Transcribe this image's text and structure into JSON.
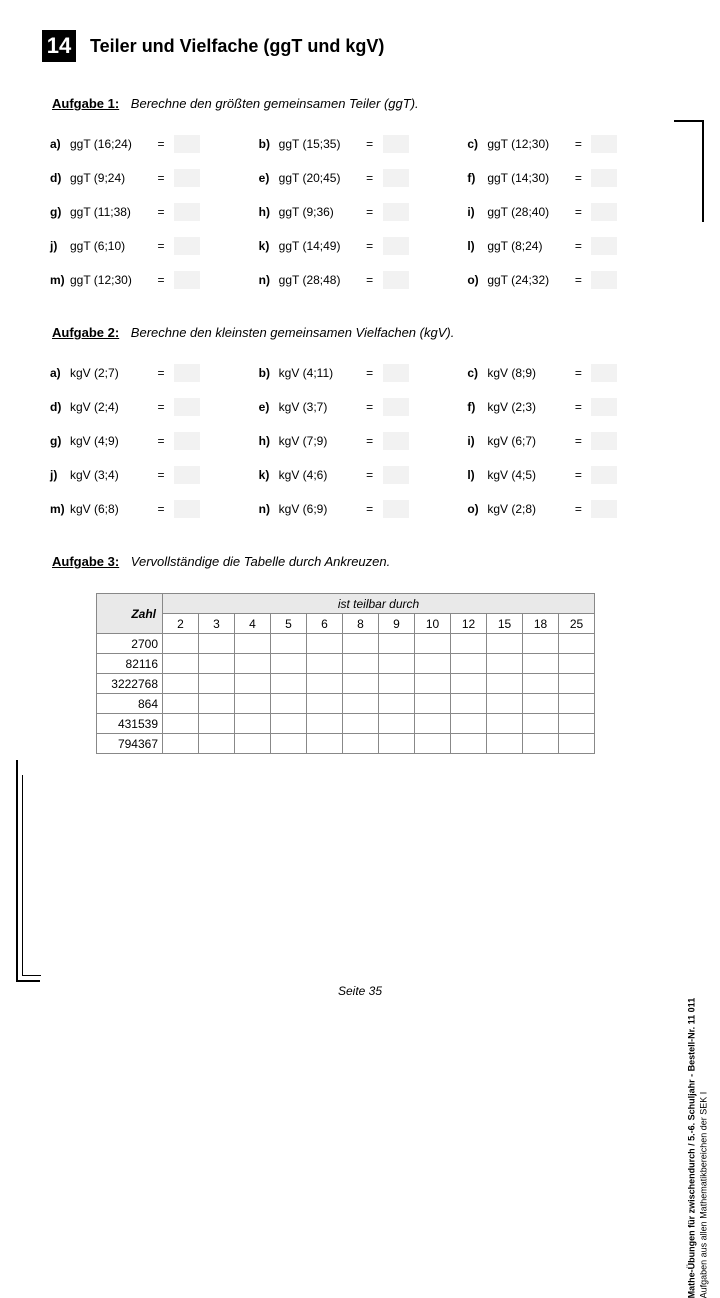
{
  "chapter": {
    "number": "14",
    "title": "Teiler und Vielfache  (ggT und kgV)"
  },
  "aufgabe1": {
    "label": "Aufgabe 1:",
    "prompt": "Berechne den größten gemeinsamen Teiler (ggT).",
    "items": [
      {
        "lt": "a)",
        "expr": "ggT (16;24)"
      },
      {
        "lt": "b)",
        "expr": "ggT (15;35)"
      },
      {
        "lt": "c)",
        "expr": "ggT (12;30)"
      },
      {
        "lt": "d)",
        "expr": "ggT (9;24)"
      },
      {
        "lt": "e)",
        "expr": "ggT (20;45)"
      },
      {
        "lt": "f)",
        "expr": "ggT (14;30)"
      },
      {
        "lt": "g)",
        "expr": "ggT (11;38)"
      },
      {
        "lt": "h)",
        "expr": "ggT (9;36)"
      },
      {
        "lt": "i)",
        "expr": "ggT (28;40)"
      },
      {
        "lt": "j)",
        "expr": "ggT (6;10)"
      },
      {
        "lt": "k)",
        "expr": "ggT (14;49)"
      },
      {
        "lt": "l)",
        "expr": "ggT (8;24)"
      },
      {
        "lt": "m)",
        "expr": "ggT (12;30)"
      },
      {
        "lt": "n)",
        "expr": "ggT (28;48)"
      },
      {
        "lt": "o)",
        "expr": "ggT (24;32)"
      }
    ]
  },
  "aufgabe2": {
    "label": "Aufgabe 2:",
    "prompt": "Berechne den kleinsten gemeinsamen Vielfachen (kgV).",
    "items": [
      {
        "lt": "a)",
        "expr": "kgV (2;7)"
      },
      {
        "lt": "b)",
        "expr": "kgV (4;11)"
      },
      {
        "lt": "c)",
        "expr": "kgV (8;9)"
      },
      {
        "lt": "d)",
        "expr": "kgV (2;4)"
      },
      {
        "lt": "e)",
        "expr": "kgV (3;7)"
      },
      {
        "lt": "f)",
        "expr": "kgV (2;3)"
      },
      {
        "lt": "g)",
        "expr": "kgV (4;9)"
      },
      {
        "lt": "h)",
        "expr": "kgV (7;9)"
      },
      {
        "lt": "i)",
        "expr": "kgV (6;7)"
      },
      {
        "lt": "j)",
        "expr": "kgV (3;4)"
      },
      {
        "lt": "k)",
        "expr": "kgV (4;6)"
      },
      {
        "lt": "l)",
        "expr": "kgV (4;5)"
      },
      {
        "lt": "m)",
        "expr": "kgV (6;8)"
      },
      {
        "lt": "n)",
        "expr": "kgV (6;9)"
      },
      {
        "lt": "o)",
        "expr": "kgV (2;8)"
      }
    ]
  },
  "aufgabe3": {
    "label": "Aufgabe 3:",
    "prompt": "Vervollständige die Tabelle durch Ankreuzen.",
    "table": {
      "zahl_header": "Zahl",
      "span_header": "ist teilbar durch",
      "columns": [
        "2",
        "3",
        "4",
        "5",
        "6",
        "8",
        "9",
        "10",
        "12",
        "15",
        "18",
        "25"
      ],
      "rows": [
        "2700",
        "82116",
        "3222768",
        "864",
        "431539",
        "794367"
      ]
    }
  },
  "eq": "=",
  "footer": "Seite 35",
  "side": {
    "l1": "Mathe-Übungen für zwischendurch  /  5.-6. Schuljahr    -    Bestell-Nr. 11 011",
    "l2": "Aufgaben aus allen Mathematikbereichen der SEK I"
  }
}
